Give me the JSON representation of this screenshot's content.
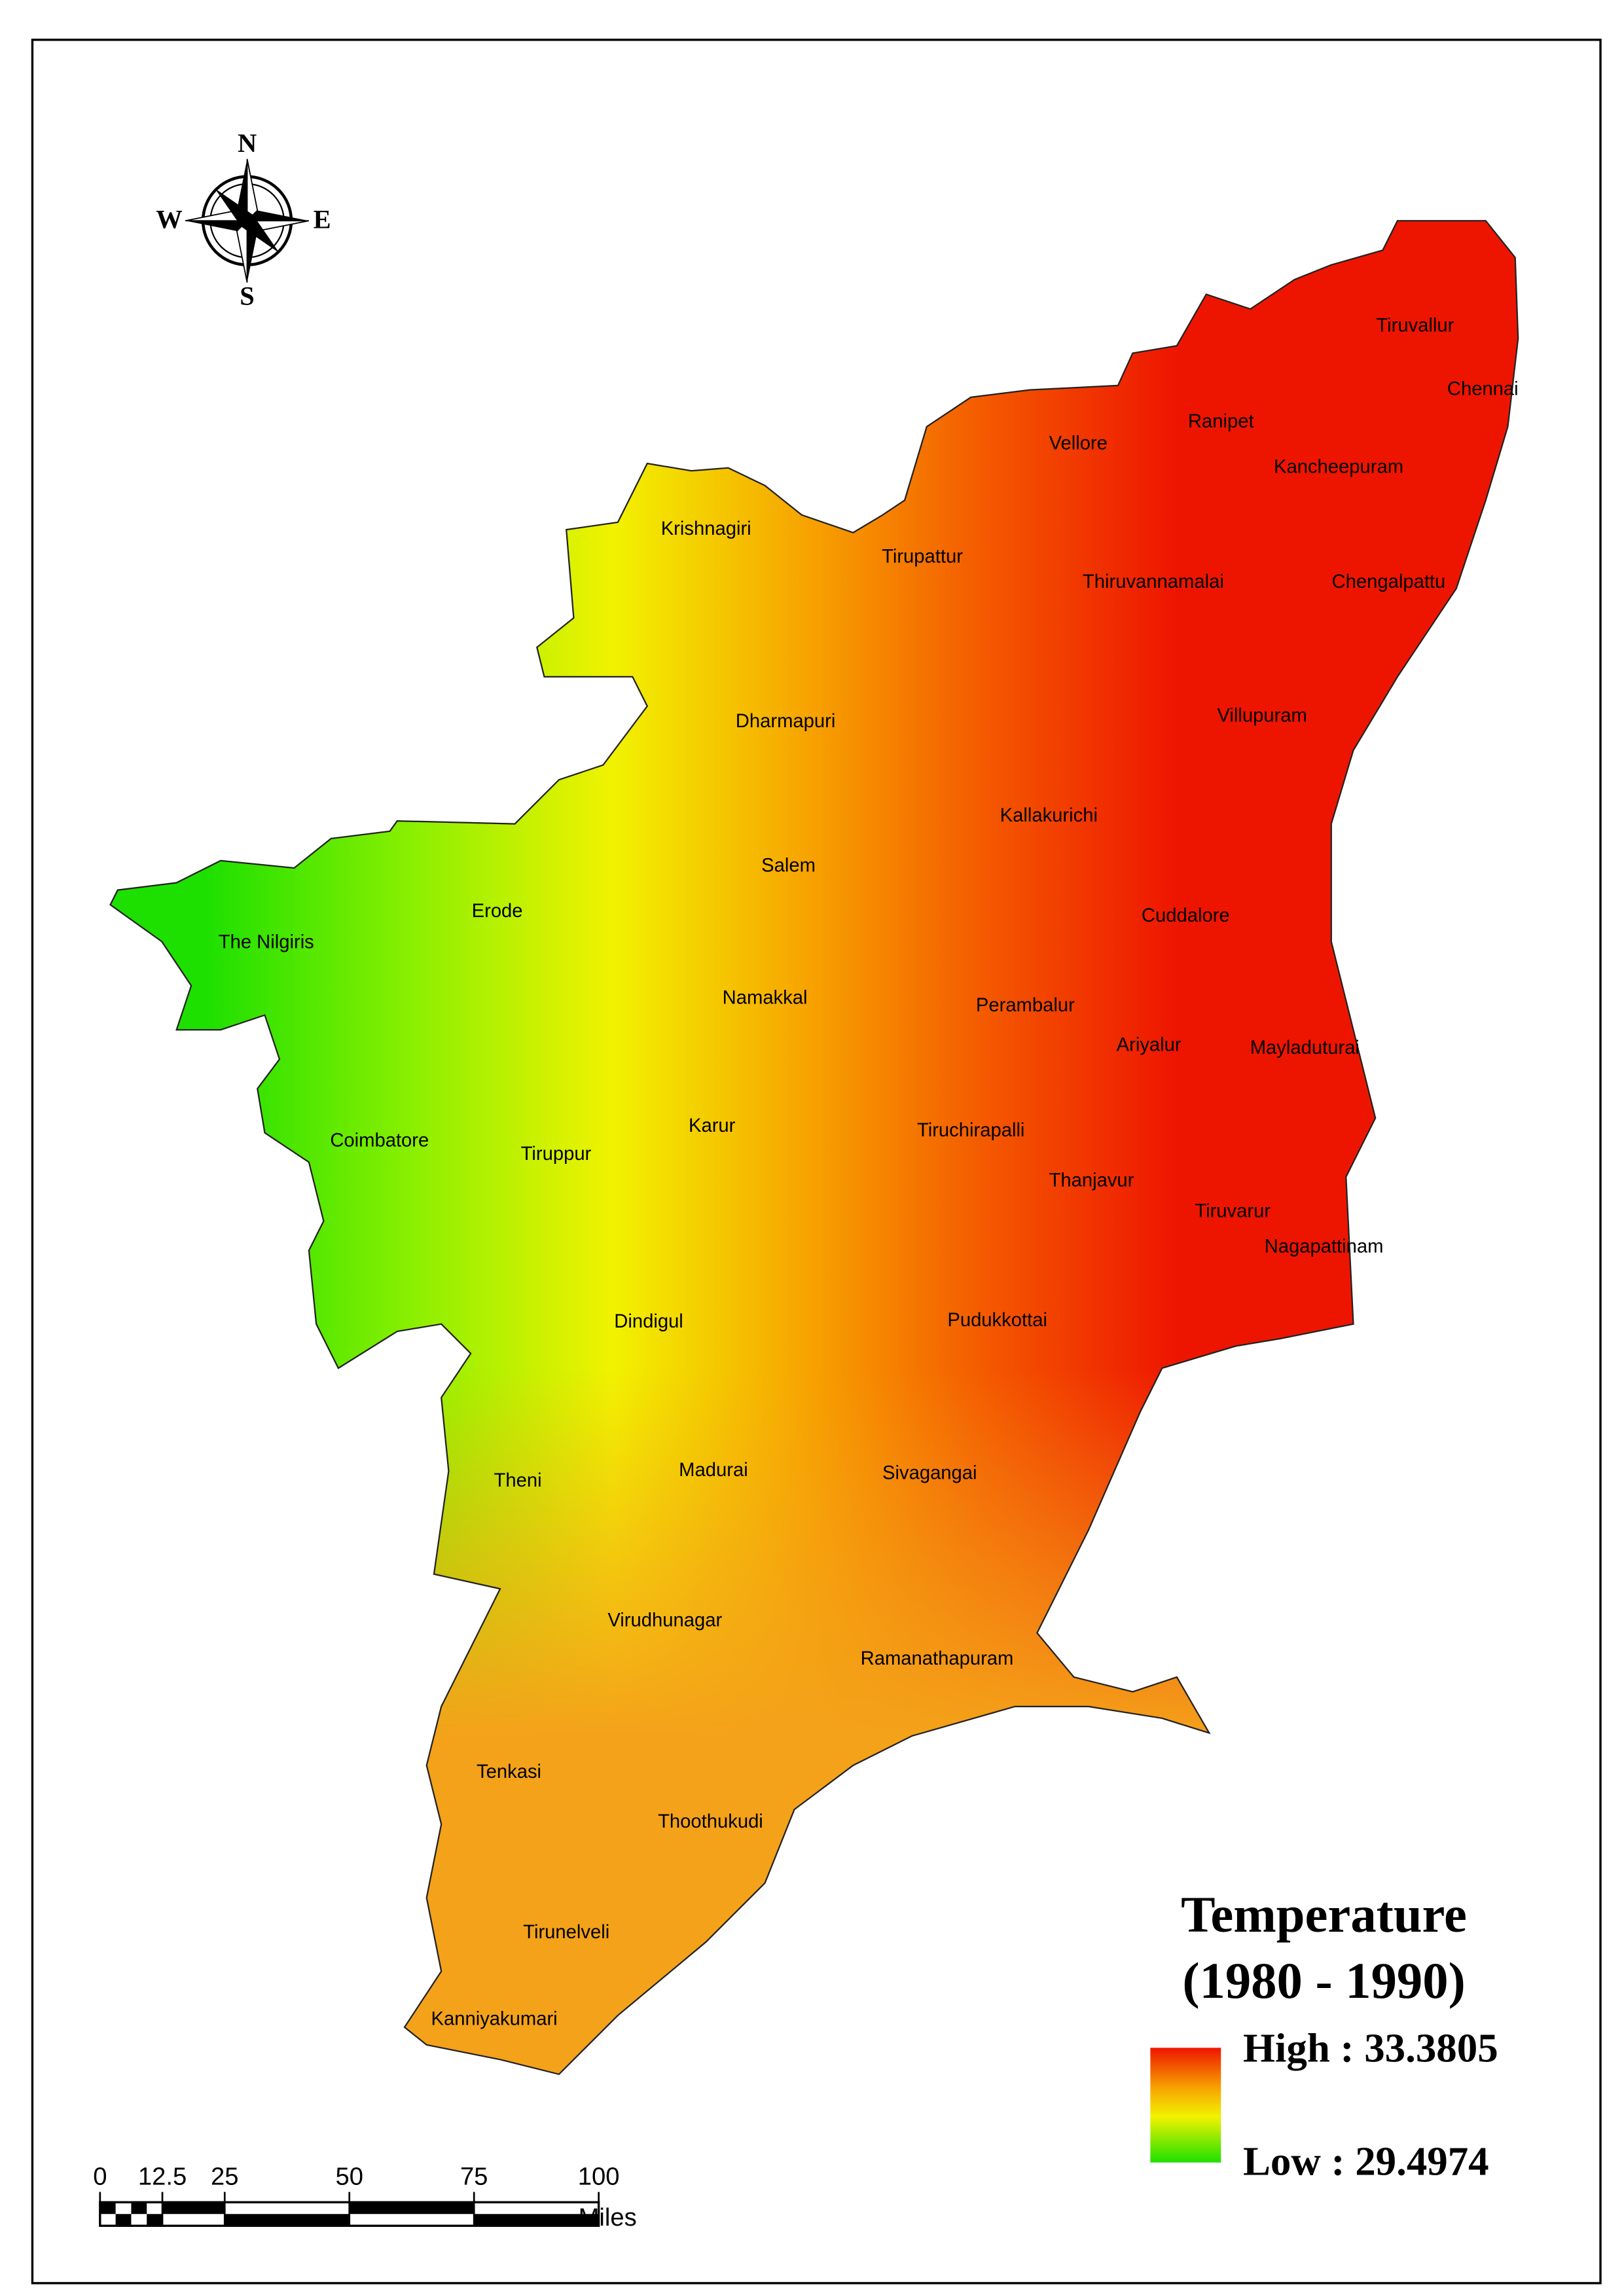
{
  "compass": {
    "north": "N",
    "east": "E",
    "south": "S",
    "west": "W"
  },
  "districts": [
    "Tiruvallur",
    "Chennai",
    "Ranipet",
    "Vellore",
    "Kancheepuram",
    "Krishnagiri",
    "Tirupattur",
    "Thiruvannamalai",
    "Chengalpattu",
    "Dharmapuri",
    "Villupuram",
    "Kallakurichi",
    "Salem",
    "Erode",
    "The Nilgiris",
    "Cuddalore",
    "Namakkal",
    "Perambalur",
    "Ariyalur",
    "Mayladuturai",
    "Karur",
    "Tiruchirapalli",
    "Coimbatore",
    "Tiruppur",
    "Thanjavur",
    "Tiruvarur",
    "Nagapattinam",
    "Dindigul",
    "Pudukkottai",
    "Theni",
    "Madurai",
    "Sivagangai",
    "Virudhunagar",
    "Ramanathapuram",
    "Tenkasi",
    "Thoothukudi",
    "Tirunelveli",
    "Kanniyakumari"
  ],
  "legend": {
    "title": "Temperature",
    "subtitle": "(1980 - 1990)",
    "high": "High : 33.3805",
    "low": "Low : 29.4974"
  },
  "scale_bar": {
    "ticks": [
      0,
      12.5,
      25,
      50,
      75,
      100
    ],
    "unit": "Miles"
  }
}
